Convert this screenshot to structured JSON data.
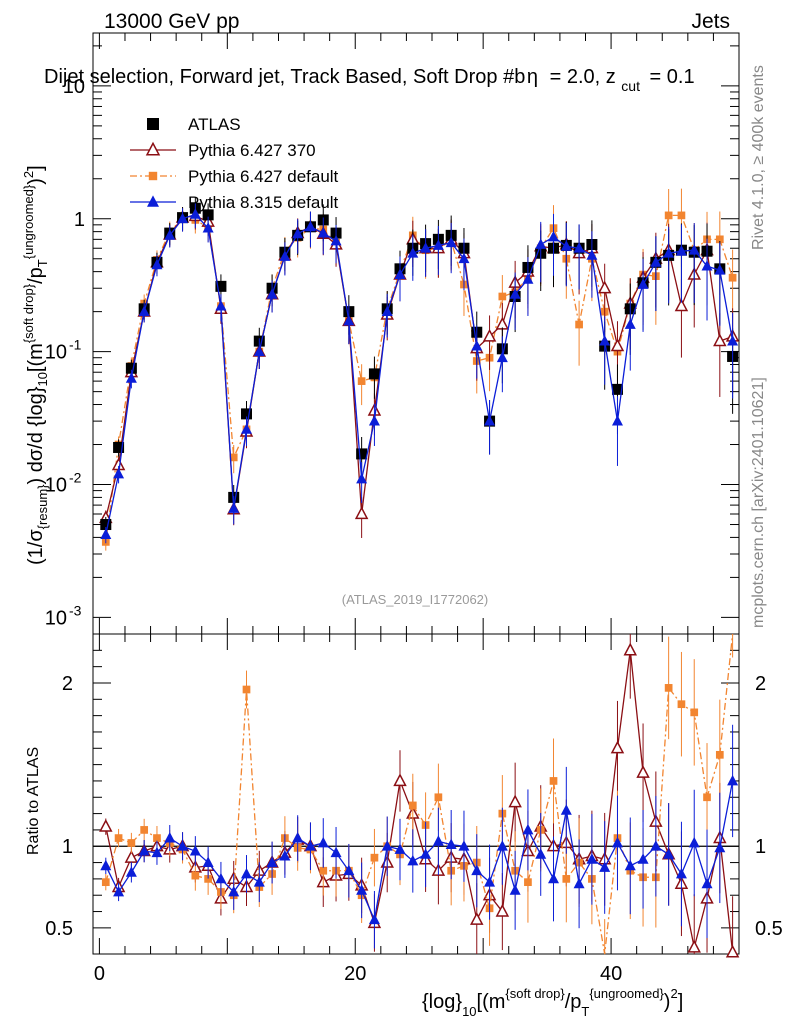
{
  "header": {
    "left": "13000 GeV pp",
    "right": "Jets"
  },
  "title_text": "Dijet selection, Forward jet, Track Based, Soft Drop #b",
  "title_beta": "= 2.0, z",
  "title_cut": "cut",
  "title_tail": "= 0.1",
  "side_top": "Rivet 4.1.0, ≥ 400k events",
  "side_bottom": "mcplots.cern.ch [arXiv:2401.10621]",
  "watermark": "(ATLAS_2019_I1772062)",
  "ylabel_main": "(1/σ{resum}) dσ/d {log}10[(m{soft drop}/pT{ungroomed})2]",
  "ylabel_ratio": "Ratio to ATLAS",
  "xlabel": "{log}10[(m{soft drop}/pT{ungroomed})2]",
  "colors": {
    "atlas": "#000000",
    "p6_370": "#8b0f14",
    "p6_def": "#f28530",
    "p8": "#0b1ed8"
  },
  "chart_data": [
    {
      "type": "line",
      "panel": "main",
      "yscale": "log",
      "xlim": [
        -0.5,
        50
      ],
      "ylim": [
        0.00075,
        25
      ],
      "xticks": [
        0,
        20,
        40
      ],
      "yticks": [
        {
          "value": 0.001,
          "label": "10",
          "exp": "-3"
        },
        {
          "value": 0.01,
          "label": "10",
          "exp": "-2"
        },
        {
          "value": 0.1,
          "label": "10",
          "exp": "-1"
        },
        {
          "value": 1,
          "label": "1",
          "exp": ""
        },
        {
          "value": 10,
          "label": "10",
          "exp": ""
        }
      ],
      "x": [
        0.5,
        1.5,
        2.5,
        3.5,
        4.5,
        5.5,
        6.5,
        7.5,
        8.5,
        9.5,
        10.5,
        11.5,
        12.5,
        13.5,
        14.5,
        15.5,
        16.5,
        17.5,
        18.5,
        19.5,
        20.5,
        21.5,
        22.5,
        23.5,
        24.5,
        25.5,
        26.5,
        27.5,
        28.5,
        29.5,
        30.5,
        31.5,
        32.5,
        33.5,
        34.5,
        35.5,
        36.5,
        37.5,
        38.5,
        39.5,
        40.5,
        41.5,
        42.5,
        43.5,
        44.5,
        45.5,
        46.5,
        47.5,
        48.5,
        49.5
      ],
      "series": [
        {
          "name": "ATLAS",
          "marker": "square",
          "values": [
            0.005,
            0.019,
            0.075,
            0.21,
            0.47,
            0.78,
            1.02,
            1.2,
            1.07,
            0.31,
            0.008,
            0.034,
            0.12,
            0.3,
            0.56,
            0.75,
            0.87,
            0.98,
            0.78,
            0.2,
            0.017,
            0.068,
            0.21,
            0.42,
            0.6,
            0.65,
            0.7,
            0.75,
            0.6,
            0.14,
            0.03,
            0.105,
            0.26,
            0.43,
            0.55,
            0.6,
            0.63,
            0.6,
            0.64,
            0.11,
            0.052,
            0.21,
            0.33,
            0.47,
            0.53,
            0.58,
            0.56,
            0.57,
            0.42,
            0.092
          ]
        },
        {
          "name": "Pythia 6.427 370",
          "marker": "open-triangle",
          "values": [
            0.0056,
            0.014,
            0.07,
            0.2,
            0.47,
            0.76,
            1.02,
            1.05,
            0.95,
            0.21,
            0.0065,
            0.025,
            0.1,
            0.27,
            0.53,
            0.78,
            0.87,
            0.77,
            0.64,
            0.17,
            0.006,
            0.036,
            0.19,
            0.38,
            0.7,
            0.6,
            0.6,
            0.7,
            0.55,
            0.106,
            0.13,
            0.16,
            0.33,
            0.4,
            0.62,
            0.6,
            0.64,
            0.55,
            0.6,
            0.3,
            0.11,
            0.23,
            0.36,
            0.5,
            0.58,
            0.22,
            0.38,
            0.58,
            0.12,
            0.13
          ]
        },
        {
          "name": "Pythia 6.427 default",
          "marker": "filled-square-small",
          "values": [
            0.0037,
            0.02,
            0.078,
            0.23,
            0.49,
            0.8,
            1.0,
            0.98,
            0.86,
            0.22,
            0.016,
            0.026,
            0.1,
            0.3,
            0.57,
            0.72,
            0.85,
            0.83,
            0.66,
            0.17,
            0.06,
            0.064,
            0.21,
            0.4,
            0.75,
            0.58,
            0.6,
            0.68,
            0.32,
            0.085,
            0.09,
            0.26,
            0.28,
            0.36,
            0.6,
            0.85,
            0.5,
            0.16,
            0.5,
            0.2,
            0.1,
            0.23,
            0.38,
            0.37,
            1.06,
            1.06,
            0.58,
            0.7,
            0.7,
            0.36
          ]
        },
        {
          "name": "Pythia 8.315 default",
          "marker": "filled-triangle",
          "values": [
            0.0042,
            0.012,
            0.063,
            0.2,
            0.45,
            0.75,
            1.0,
            1.08,
            0.85,
            0.22,
            0.0066,
            0.026,
            0.1,
            0.27,
            0.52,
            0.77,
            0.87,
            0.78,
            0.68,
            0.17,
            0.011,
            0.03,
            0.2,
            0.38,
            0.55,
            0.6,
            0.63,
            0.66,
            0.5,
            0.11,
            0.03,
            0.09,
            0.27,
            0.35,
            0.64,
            0.73,
            0.62,
            0.6,
            0.53,
            0.12,
            0.03,
            0.16,
            0.32,
            0.47,
            0.55,
            0.57,
            0.58,
            0.44,
            0.41,
            0.12
          ]
        }
      ],
      "legend": [
        "ATLAS",
        "Pythia 6.427 370",
        "Pythia 6.427 default",
        "Pythia 8.315 default"
      ],
      "legend_position": "top-left"
    },
    {
      "type": "line",
      "panel": "ratio",
      "xlim": [
        -0.5,
        50
      ],
      "ylim": [
        0.34,
        2.3
      ],
      "xticks": [
        0,
        20,
        40
      ],
      "yticks": [
        0.5,
        1,
        2
      ],
      "x": [
        0.5,
        1.5,
        2.5,
        3.5,
        4.5,
        5.5,
        6.5,
        7.5,
        8.5,
        9.5,
        10.5,
        11.5,
        12.5,
        13.5,
        14.5,
        15.5,
        16.5,
        17.5,
        18.5,
        19.5,
        20.5,
        21.5,
        22.5,
        23.5,
        24.5,
        25.5,
        26.5,
        27.5,
        28.5,
        29.5,
        30.5,
        31.5,
        32.5,
        33.5,
        34.5,
        35.5,
        36.5,
        37.5,
        38.5,
        39.5,
        40.5,
        41.5,
        42.5,
        43.5,
        44.5,
        45.5,
        46.5,
        47.5,
        48.5,
        49.5
      ],
      "series": [
        {
          "name": "Pythia 6.427 370",
          "values": [
            1.12,
            0.75,
            0.93,
            0.97,
            1.0,
            0.98,
            1.0,
            0.87,
            0.88,
            0.68,
            0.8,
            0.75,
            0.85,
            0.9,
            0.96,
            1.04,
            1.0,
            0.78,
            0.82,
            0.83,
            0.76,
            0.53,
            0.9,
            1.4,
            1.2,
            0.92,
            0.85,
            0.93,
            0.92,
            0.55,
            0.7,
            0.6,
            1.27,
            0.97,
            1.12,
            1.0,
            1.02,
            0.92,
            0.94,
            0.92,
            1.6,
            2.2,
            1.45,
            1.15,
            0.95,
            0.77,
            0.38,
            0.68,
            1.05,
            0.35
          ]
        },
        {
          "name": "Pythia 6.427 default",
          "values": [
            0.78,
            1.05,
            1.02,
            1.1,
            1.05,
            1.02,
            0.98,
            0.82,
            0.8,
            0.72,
            0.7,
            1.96,
            0.75,
            0.83,
            1.05,
            0.99,
            0.98,
            0.85,
            0.85,
            0.85,
            0.7,
            0.93,
            1.0,
            0.95,
            1.25,
            1.13,
            1.3,
            0.85,
            0.88,
            0.9,
            0.62,
            1.2,
            0.85,
            0.78,
            1.1,
            1.4,
            0.8,
            0.9,
            0.8,
            0.27,
            1.05,
            0.85,
            0.81,
            0.81,
            1.97,
            1.87,
            1.82,
            1.3,
            1.56,
            2.5
          ]
        },
        {
          "name": "Pythia 8.315 default",
          "values": [
            0.88,
            0.72,
            0.84,
            0.97,
            0.96,
            1.05,
            1.0,
            0.97,
            0.9,
            0.8,
            0.72,
            0.83,
            0.78,
            0.9,
            0.94,
            1.05,
            1.0,
            1.02,
            0.96,
            0.85,
            0.73,
            0.55,
            1.0,
            0.98,
            0.91,
            0.95,
            1.03,
            1.01,
            1.0,
            0.85,
            0.78,
            1.0,
            0.73,
            1.1,
            0.95,
            0.8,
            1.22,
            0.77,
            0.92,
            0.87,
            1.02,
            0.88,
            0.92,
            1.0,
            0.95,
            0.83,
            1.02,
            0.77,
            0.99,
            1.4
          ]
        }
      ],
      "reference_line": 1
    }
  ]
}
